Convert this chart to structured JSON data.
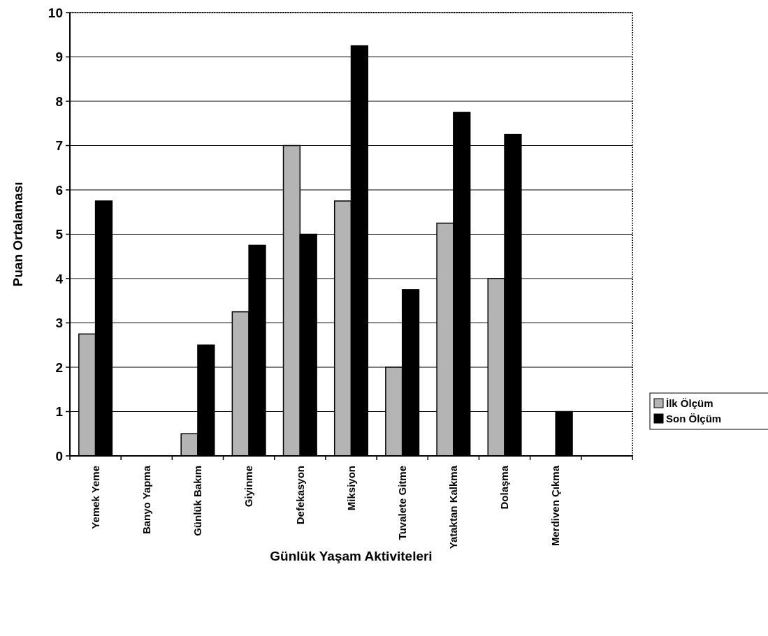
{
  "chart_data": {
    "type": "bar",
    "xlabel": "Günlük Yaşam Aktiviteleri",
    "ylabel": "Puan Ortalaması",
    "categories": [
      "Yemek Yeme",
      "Banyo Yapma",
      "Günlük Bakım",
      "Giyinme",
      "Defekasyon",
      "Miksiyon",
      "Tuvalete Gitme",
      "Yataktan Kalkma",
      "Dolaşma",
      "Merdiven Çıkma",
      null
    ],
    "series": [
      {
        "name": "İlk Ölçüm",
        "color": "#b4b4b4",
        "values": [
          2.75,
          0,
          0.5,
          3.25,
          7,
          5.75,
          2,
          5.25,
          4,
          0,
          null
        ]
      },
      {
        "name": "Son Ölçüm",
        "color": "#000000",
        "values": [
          5.75,
          0,
          2.5,
          4.75,
          5,
          9.25,
          3.75,
          7.75,
          7.25,
          1,
          null
        ]
      }
    ],
    "ylim": [
      0,
      10
    ],
    "yticks": [
      0,
      1,
      2,
      3,
      4,
      5,
      6,
      7,
      8,
      9,
      10
    ],
    "grid": "y",
    "legend": "right"
  }
}
